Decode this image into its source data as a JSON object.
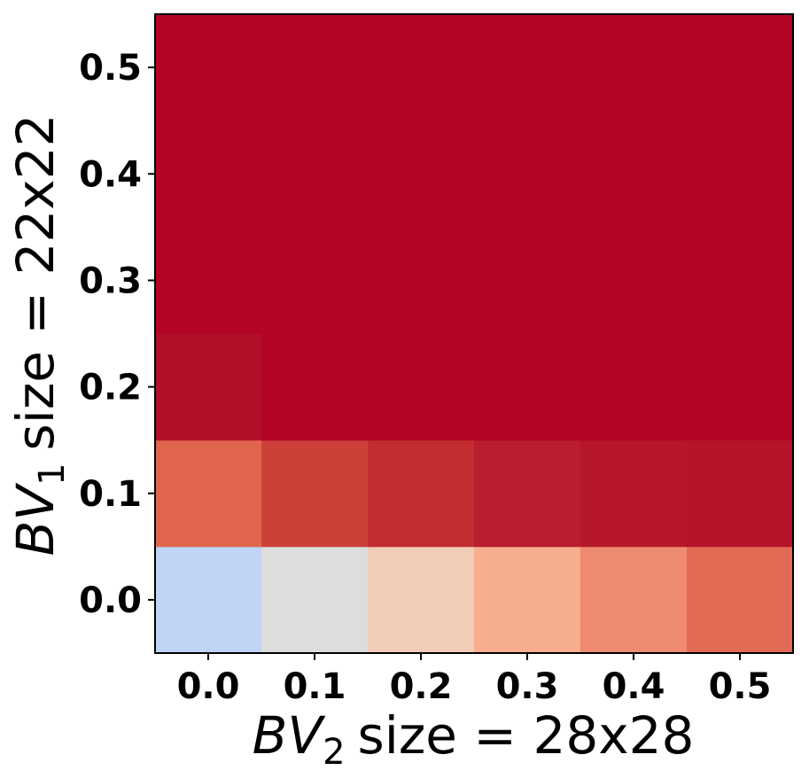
{
  "chart_data": {
    "type": "heatmap",
    "title": "",
    "x_ticks": [
      "0.0",
      "0.1",
      "0.2",
      "0.3",
      "0.4",
      "0.5"
    ],
    "y_ticks": [
      "0.0",
      "0.1",
      "0.2",
      "0.3",
      "0.4",
      "0.5"
    ],
    "xlabel": {
      "var": "BV",
      "sub": "2",
      "rest": "size = 28x28"
    },
    "ylabel": {
      "var": "BV",
      "sub": "1",
      "rest": "size = 22x22"
    },
    "colormap": "coolwarm",
    "colorbar": false,
    "cells_row_by_y_ascending": [
      [
        "#c0d4f5",
        "#dcdddd",
        "#f1cdb8",
        "#f7ad8f",
        "#ee8a6f",
        "#e26b56"
      ],
      [
        "#e0654f",
        "#cc4039",
        "#c32e31",
        "#b81e2d",
        "#b61729",
        "#b41427"
      ],
      [
        "#b20f28",
        "#b40426",
        "#b40426",
        "#b40426",
        "#b40426",
        "#b40426"
      ],
      [
        "#b40426",
        "#b40426",
        "#b40426",
        "#b40426",
        "#b40426",
        "#b40426"
      ],
      [
        "#b40426",
        "#b40426",
        "#b40426",
        "#b40426",
        "#b40426",
        "#b40426"
      ],
      [
        "#b40426",
        "#b40426",
        "#b40426",
        "#b40426",
        "#b40426",
        "#b40426"
      ]
    ]
  }
}
